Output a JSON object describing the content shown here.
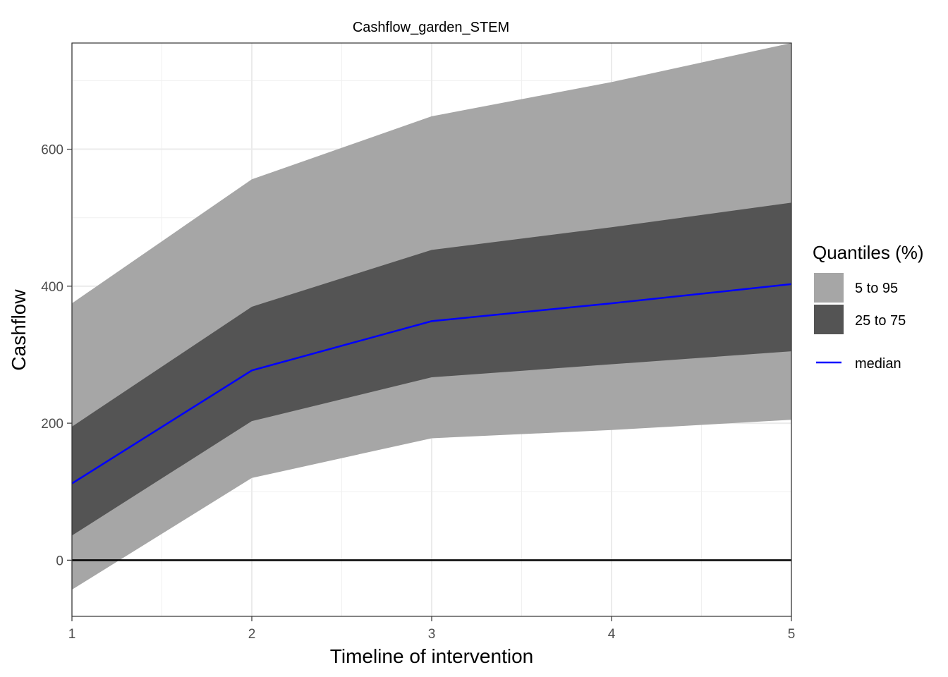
{
  "chart_data": {
    "type": "area",
    "title": "Cashflow_garden_STEM",
    "xlabel": "Timeline of intervention",
    "ylabel": "Cashflow",
    "x": [
      1,
      2,
      3,
      4,
      5
    ],
    "xlim": [
      1,
      5
    ],
    "ylim": [
      -82,
      755
    ],
    "xticks": [
      1,
      2,
      3,
      4,
      5
    ],
    "yticks": [
      0,
      200,
      400,
      600
    ],
    "grid": true,
    "legend_position": "right",
    "legend_title": "Quantiles (%)",
    "ribbons": [
      {
        "name": "5 to 95",
        "color": "#a6a6a6",
        "lower": [
          -43,
          120,
          178,
          190,
          205
        ],
        "upper": [
          375,
          556,
          648,
          698,
          755
        ]
      },
      {
        "name": "25 to 75",
        "color": "#545454",
        "lower": [
          36,
          203,
          267,
          286,
          305
        ],
        "upper": [
          195,
          370,
          453,
          486,
          522
        ]
      }
    ],
    "series": [
      {
        "name": "median",
        "color": "#0000ff",
        "values": [
          112,
          277,
          349,
          375,
          403
        ]
      }
    ],
    "reference_line": {
      "y": 0,
      "color": "#000000"
    }
  }
}
